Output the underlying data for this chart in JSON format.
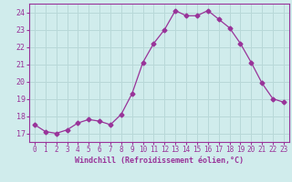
{
  "x": [
    0,
    1,
    2,
    3,
    4,
    5,
    6,
    7,
    8,
    9,
    10,
    11,
    12,
    13,
    14,
    15,
    16,
    17,
    18,
    19,
    20,
    21,
    22,
    23
  ],
  "y": [
    17.5,
    17.1,
    17.0,
    17.2,
    17.6,
    17.8,
    17.7,
    17.5,
    18.1,
    19.3,
    21.1,
    22.2,
    23.0,
    24.1,
    23.8,
    23.8,
    24.1,
    23.6,
    23.1,
    22.2,
    21.1,
    19.9,
    19.0,
    18.8
  ],
  "line_color": "#993399",
  "marker": "D",
  "marker_size": 2.5,
  "bg_color": "#d0ecec",
  "grid_color": "#b8d8d8",
  "xlabel": "Windchill (Refroidissement éolien,°C)",
  "ylim": [
    16.5,
    24.5
  ],
  "yticks": [
    17,
    18,
    19,
    20,
    21,
    22,
    23,
    24
  ],
  "xticks": [
    0,
    1,
    2,
    3,
    4,
    5,
    6,
    7,
    8,
    9,
    10,
    11,
    12,
    13,
    14,
    15,
    16,
    17,
    18,
    19,
    20,
    21,
    22,
    23
  ]
}
